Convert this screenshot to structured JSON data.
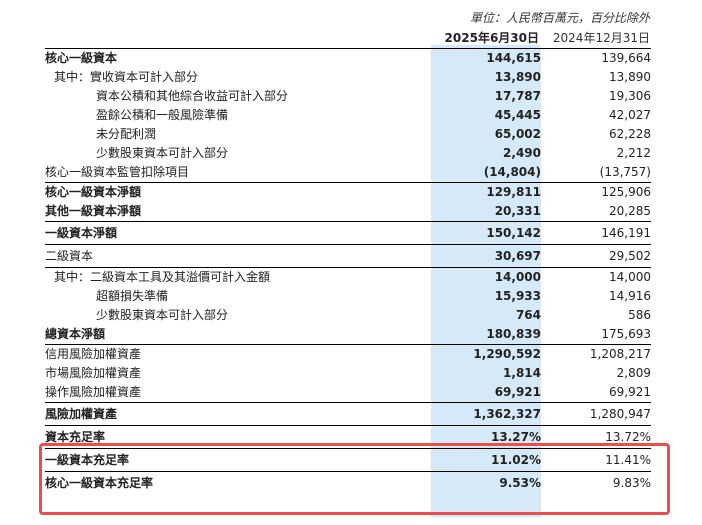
{
  "header": {
    "unit": "單位：人民幣百萬元，百分比除外",
    "col_current": "2025年6月30日",
    "col_previous": "2024年12月31日"
  },
  "rows": [
    {
      "label": "核心一級資本",
      "current": "144,615",
      "previous": "139,664",
      "bold": true,
      "sep": true,
      "indent": 0
    },
    {
      "label": "其中：實收資本可計入部分",
      "current": "13,890",
      "previous": "13,890",
      "bold": false,
      "sep": false,
      "indent": 1
    },
    {
      "label": "資本公積和其他綜合收益可計入部分",
      "current": "17,787",
      "previous": "19,306",
      "bold": false,
      "sep": false,
      "indent": 2
    },
    {
      "label": "盈餘公積和一般風險準備",
      "current": "45,445",
      "previous": "42,027",
      "bold": false,
      "sep": false,
      "indent": 2
    },
    {
      "label": "未分配利潤",
      "current": "65,002",
      "previous": "62,228",
      "bold": false,
      "sep": false,
      "indent": 2
    },
    {
      "label": "少數股東資本可計入部分",
      "current": "2,490",
      "previous": "2,212",
      "bold": false,
      "sep": false,
      "indent": 2
    },
    {
      "label": "核心一級資本監管扣除項目",
      "current": "(14,804)",
      "previous": "(13,757)",
      "bold": false,
      "sep": false,
      "indent": 0
    },
    {
      "label": "核心一級資本淨額",
      "current": "129,811",
      "previous": "125,906",
      "bold": true,
      "sep": true,
      "indent": 0
    },
    {
      "label": "其他一級資本淨額",
      "current": "20,331",
      "previous": "20,285",
      "bold": true,
      "sep": false,
      "indent": 0
    },
    {
      "label": "一級資本淨額",
      "current": "150,142",
      "previous": "146,191",
      "bold": true,
      "sep": true,
      "indent": 0,
      "tall": true
    },
    {
      "label": "二級資本",
      "current": "30,697",
      "previous": "29,502",
      "bold": false,
      "sep": true,
      "indent": 0,
      "tall": true
    },
    {
      "label": "其中：二級資本工具及其溢價可計入金額",
      "current": "14,000",
      "previous": "14,000",
      "bold": false,
      "sep": true,
      "indent": 1
    },
    {
      "label": "超額損失準備",
      "current": "15,933",
      "previous": "14,916",
      "bold": false,
      "sep": false,
      "indent": 2
    },
    {
      "label": "少數股東資本可計入部分",
      "current": "764",
      "previous": "586",
      "bold": false,
      "sep": false,
      "indent": 2
    },
    {
      "label": "總資本淨額",
      "current": "180,839",
      "previous": "175,693",
      "bold": true,
      "sep": false,
      "indent": 0
    },
    {
      "label": "信用風險加權資產",
      "current": "1,290,592",
      "previous": "1,208,217",
      "bold": false,
      "sep": true,
      "indent": 0
    },
    {
      "label": "市場風險加權資產",
      "current": "1,814",
      "previous": "2,809",
      "bold": false,
      "sep": false,
      "indent": 0
    },
    {
      "label": "操作風險加權資產",
      "current": "69,921",
      "previous": "69,921",
      "bold": false,
      "sep": false,
      "indent": 0
    },
    {
      "label": "風險加權資產",
      "current": "1,362,327",
      "previous": "1,280,947",
      "bold": true,
      "sep": true,
      "indent": 0,
      "tall": true
    },
    {
      "label": "資本充足率",
      "current": "13.27%",
      "previous": "13.72%",
      "bold": true,
      "sep": true,
      "indent": 0,
      "tall": true
    },
    {
      "label": "一級資本充足率",
      "current": "11.02%",
      "previous": "11.41%",
      "bold": true,
      "sep": true,
      "indent": 0,
      "tall": true
    },
    {
      "label": "核心一級資本充足率",
      "current": "9.53%",
      "previous": "9.83%",
      "bold": true,
      "sep": true,
      "indent": 0,
      "tall": true
    }
  ]
}
